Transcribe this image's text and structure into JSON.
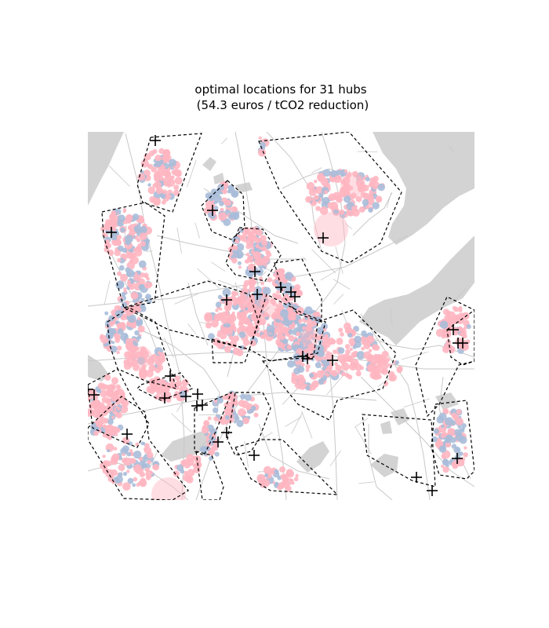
{
  "figure": {
    "title_line1": "optimal locations for 31 hubs",
    "title_line2": " (54.3 euros / tCO2 reduction)",
    "hub_count": 31,
    "cost_per_tco2_reduction_eur": 54.3
  },
  "colors": {
    "background": "#ffffff",
    "water": "#d3d3d3",
    "roads": "#c8c8c8",
    "demand_pink": "#ffb6c1",
    "demand_blue": "#a9bcd9",
    "hub_marker": "#000000",
    "cluster_boundary": "#000000"
  },
  "legend": "none",
  "axes_visible": false
}
